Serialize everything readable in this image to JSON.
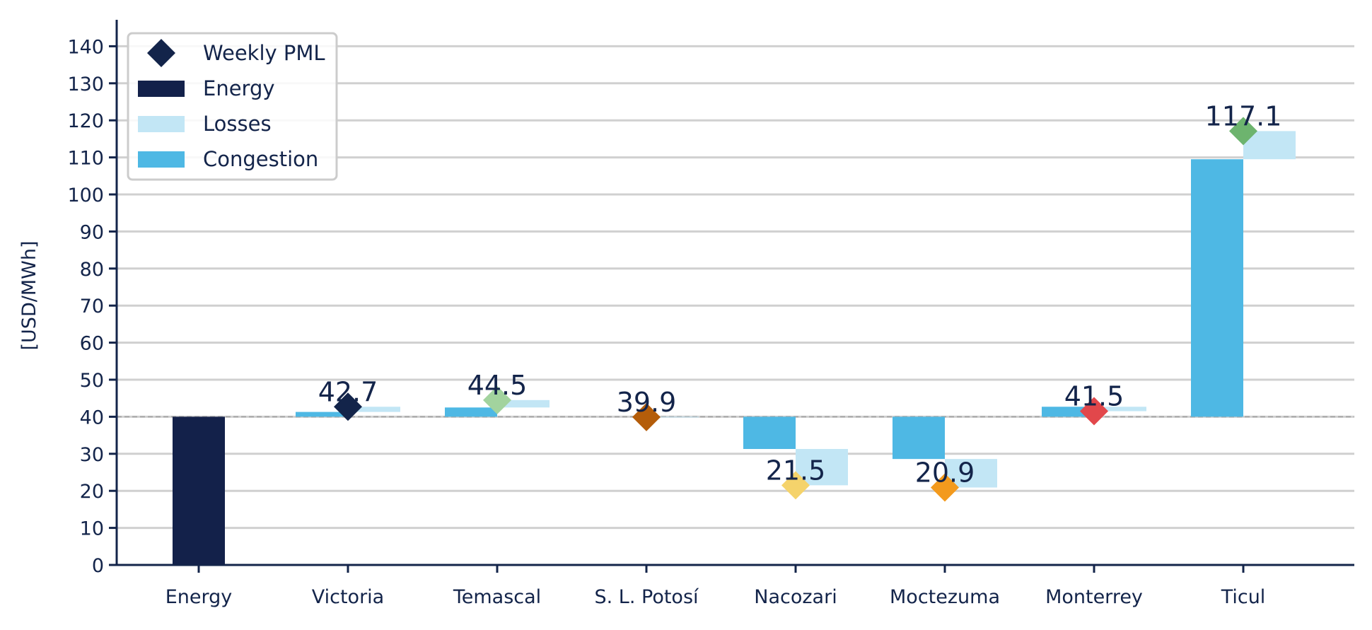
{
  "chart_data": {
    "type": "bar",
    "subtype": "waterfall-with-markers",
    "ylabel": "[USD/MWh]",
    "ylim": [
      0,
      145
    ],
    "yticks": [
      0,
      10,
      20,
      30,
      40,
      50,
      60,
      70,
      80,
      90,
      100,
      110,
      120,
      130,
      140
    ],
    "grid": true,
    "reference_line": 40,
    "categories": [
      "Energy",
      "Victoria",
      "Temascal",
      "S. L. Potosí",
      "Nacozari",
      "Moctezuma",
      "Monterrey",
      "Ticul"
    ],
    "energy": 40,
    "congestion": [
      null,
      1.3,
      2.5,
      0,
      -8.7,
      -11.4,
      2.7,
      69.5
    ],
    "losses": [
      null,
      1.4,
      2.0,
      -0.1,
      -9.8,
      -7.7,
      -1.2,
      7.6
    ],
    "weekly_pml": [
      null,
      42.7,
      44.5,
      39.9,
      21.5,
      20.9,
      41.5,
      117.1
    ],
    "pml_labels": [
      "",
      "42.7",
      "44.5",
      "39.9",
      "21.5",
      "20.9",
      "41.5",
      "117.1"
    ],
    "marker_colors": [
      null,
      "#13244a",
      "#a2d39e",
      "#b45d0a",
      "#f5d36b",
      "#f39a1d",
      "#e2474b",
      "#6db46e"
    ],
    "colors": {
      "energy": "#13214a",
      "losses": "#c2e6f5",
      "congestion": "#4eb8e4",
      "axis": "#13244a",
      "grid": "#d0d0d0",
      "reference": "#a8a8a8"
    },
    "legend": {
      "position": "top-left",
      "entries": [
        {
          "label": "Weekly PML",
          "kind": "marker",
          "color": "#13244a"
        },
        {
          "label": "Energy",
          "kind": "bar",
          "color": "#13214a"
        },
        {
          "label": "Losses",
          "kind": "bar",
          "color": "#c2e6f5"
        },
        {
          "label": "Congestion",
          "kind": "bar",
          "color": "#4eb8e4"
        }
      ]
    }
  }
}
